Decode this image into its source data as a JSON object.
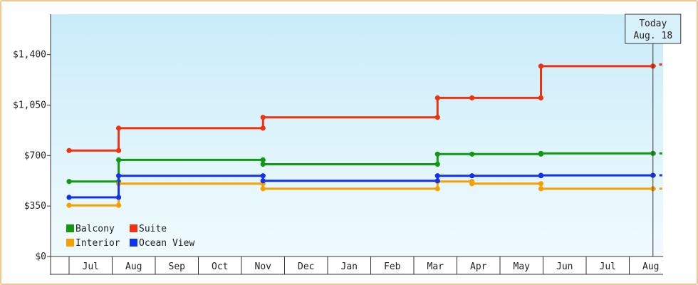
{
  "chart_data": {
    "type": "line",
    "title": "",
    "xlabel": "",
    "ylabel": "",
    "ylim": [
      0,
      1680
    ],
    "yticks": [
      {
        "value": 0,
        "label": "$0"
      },
      {
        "value": 350,
        "label": "$350"
      },
      {
        "value": 700,
        "label": "$700"
      },
      {
        "value": 1050,
        "label": "$1,050"
      },
      {
        "value": 1400,
        "label": "$1,400"
      }
    ],
    "months": [
      "Jul",
      "Aug",
      "Sep",
      "Oct",
      "Nov",
      "Dec",
      "Jan",
      "Feb",
      "Mar",
      "Apr",
      "May",
      "Jun",
      "Jul",
      "Aug"
    ],
    "x_range": [
      "Jun 15",
      "Aug 28 (next year)"
    ],
    "today": {
      "line1": "Today",
      "line2": "Aug. 18",
      "x": 13.55
    },
    "grid": false,
    "legend_position": "bottom-left",
    "series": [
      {
        "name": "Balcony",
        "color": "#119911",
        "points": [
          [
            0.0,
            520
          ],
          [
            1.15,
            520
          ],
          [
            1.15,
            670
          ],
          [
            4.5,
            670
          ],
          [
            4.5,
            640
          ],
          [
            8.55,
            640
          ],
          [
            8.55,
            710
          ],
          [
            9.35,
            710
          ],
          [
            10.95,
            710
          ],
          [
            10.95,
            715
          ],
          [
            13.55,
            715
          ]
        ]
      },
      {
        "name": "Suite",
        "color": "#ee3311",
        "points": [
          [
            0.0,
            735
          ],
          [
            1.15,
            735
          ],
          [
            1.15,
            890
          ],
          [
            4.5,
            890
          ],
          [
            4.5,
            965
          ],
          [
            8.55,
            965
          ],
          [
            8.55,
            1100
          ],
          [
            9.35,
            1100
          ],
          [
            10.95,
            1100
          ],
          [
            10.95,
            1320
          ],
          [
            13.55,
            1320
          ]
        ]
      },
      {
        "name": "Interior",
        "color": "#f5a000",
        "points": [
          [
            0.0,
            355
          ],
          [
            1.15,
            355
          ],
          [
            1.15,
            505
          ],
          [
            4.5,
            505
          ],
          [
            4.5,
            470
          ],
          [
            8.55,
            470
          ],
          [
            8.55,
            520
          ],
          [
            9.35,
            520
          ],
          [
            9.35,
            505
          ],
          [
            10.95,
            505
          ],
          [
            10.95,
            470
          ],
          [
            13.55,
            470
          ]
        ]
      },
      {
        "name": "Ocean View",
        "color": "#1133ee",
        "points": [
          [
            0.0,
            410
          ],
          [
            1.15,
            410
          ],
          [
            1.15,
            560
          ],
          [
            4.5,
            560
          ],
          [
            4.5,
            525
          ],
          [
            8.55,
            525
          ],
          [
            8.55,
            560
          ],
          [
            9.35,
            560
          ],
          [
            10.95,
            560
          ],
          [
            10.95,
            563
          ],
          [
            13.55,
            563
          ]
        ]
      }
    ]
  }
}
